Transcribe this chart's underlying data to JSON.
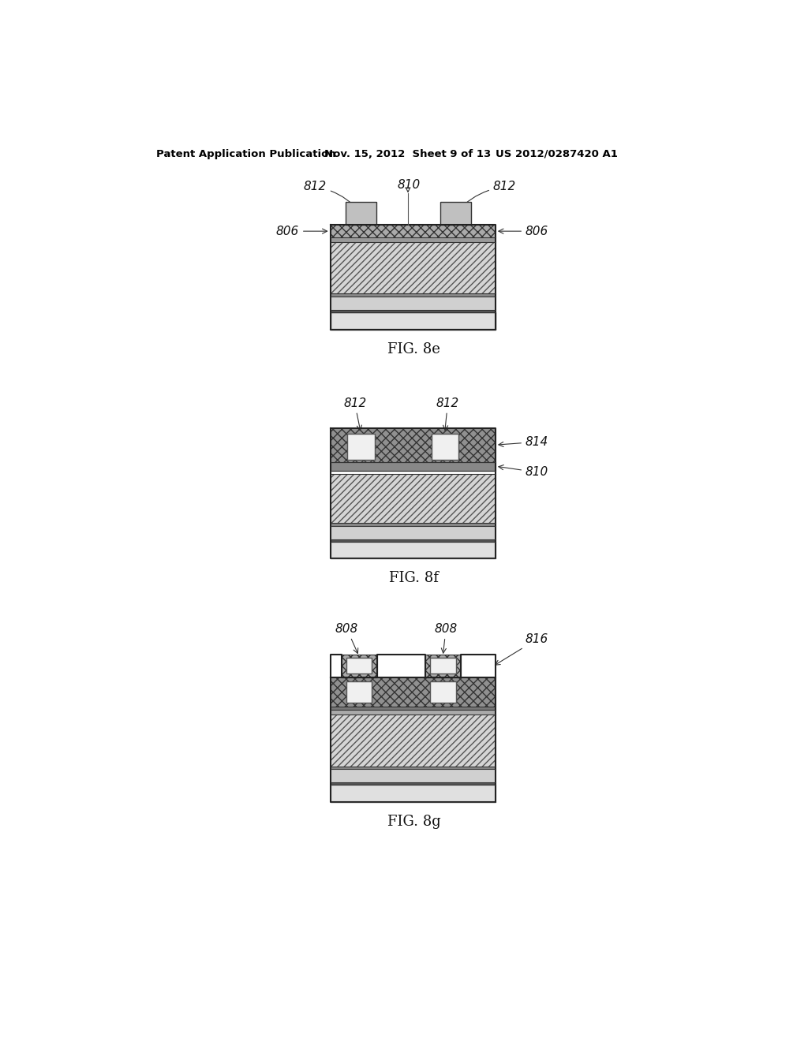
{
  "page_width": 10.24,
  "page_height": 13.2,
  "bg_color": "#ffffff",
  "header_text": "Patent Application Publication",
  "header_date": "Nov. 15, 2012  Sheet 9 of 13",
  "header_patent": "US 2012/0287420 A1",
  "fig8e_label": "FIG. 8e",
  "fig8f_label": "FIG. 8f",
  "fig8g_label": "FIG. 8g",
  "c_light": "#e8e8e8",
  "c_med": "#c8c8c8",
  "c_dark": "#909090",
  "c_vdark": "#585858",
  "c_black": "#222222"
}
